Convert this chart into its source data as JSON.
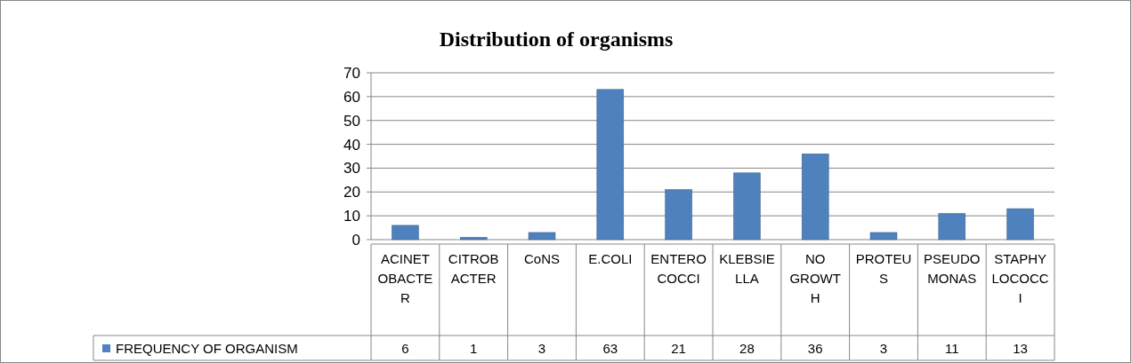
{
  "chart_data": {
    "type": "bar",
    "title": "Distribution of organisms",
    "categories": [
      "ACINETOBACTER",
      "CITROBACTER",
      "CoNS",
      "E.COLI",
      "ENTEROCOCCI",
      "KLEBSIELLA",
      "NO GROWTH",
      "PROTEUS",
      "PSEUDOMONAS",
      "STAPHYLOCOCCI"
    ],
    "series": [
      {
        "name": "FREQUENCY OF ORGANISM",
        "color": "#4f81bd",
        "values": [
          6,
          1,
          3,
          63,
          21,
          28,
          36,
          3,
          11,
          13
        ]
      }
    ],
    "ylim": [
      0,
      70
    ],
    "yticks": [
      0,
      10,
      20,
      30,
      40,
      50,
      60,
      70
    ],
    "grid": "y",
    "legend": "bottom",
    "data_labels": true
  }
}
